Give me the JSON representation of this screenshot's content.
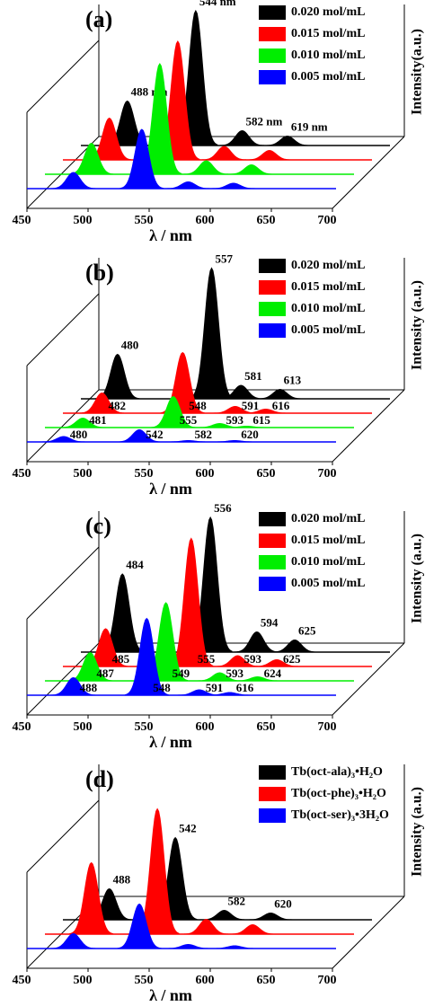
{
  "chart_data": [
    {
      "type": "waterfall",
      "title": "(a)",
      "xlabel": "λ / nm",
      "ylabel": "Intensity(a.u.)",
      "xlim": [
        450,
        700
      ],
      "xticks": [
        450,
        500,
        550,
        600,
        650,
        700
      ],
      "ylim": [
        0,
        100
      ],
      "legend": "upper right",
      "series": [
        {
          "name": "0.020 mol/mL",
          "color": "#000000",
          "x": [
            488,
            544,
            582,
            619
          ],
          "values": [
            33,
            100,
            11,
            7
          ],
          "labels": true,
          "x_labels": [
            "488 nm",
            "544 nm",
            "582 nm",
            "619 nm"
          ]
        },
        {
          "name": "0.015 mol/mL",
          "color": "#ff0000",
          "x": [
            488,
            544,
            582,
            619
          ],
          "values": [
            31,
            88,
            10,
            7
          ]
        },
        {
          "name": "0.010 mol/mL",
          "color": "#00ee00",
          "x": [
            488,
            544,
            582,
            619
          ],
          "values": [
            23,
            82,
            10,
            7
          ]
        },
        {
          "name": "0.005 mol/mL",
          "color": "#0000ff",
          "x": [
            488,
            544,
            582,
            619
          ],
          "values": [
            12,
            44,
            5,
            4
          ]
        }
      ]
    },
    {
      "type": "waterfall",
      "title": "(b)",
      "xlabel": "λ / nm",
      "ylabel": "Intensity (a.u.)",
      "xlim": [
        450,
        700
      ],
      "xticks": [
        450,
        500,
        550,
        600,
        650,
        700
      ],
      "ylim": [
        0,
        100
      ],
      "legend": "upper right",
      "series": [
        {
          "name": "0.020 mol/mL",
          "color": "#000000",
          "x": [
            480,
            557,
            581,
            613
          ],
          "values": [
            33,
            97,
            10,
            7
          ],
          "labels": true
        },
        {
          "name": "0.015 mol/mL",
          "color": "#ff0000",
          "x": [
            482,
            548,
            591,
            616
          ],
          "values": [
            15,
            45,
            5,
            3
          ],
          "labels": true
        },
        {
          "name": "0.010 mol/mL",
          "color": "#00ee00",
          "x": [
            481,
            555,
            593,
            615
          ],
          "values": [
            7,
            23,
            3,
            1
          ],
          "labels": true
        },
        {
          "name": "0.005 mol/mL",
          "color": "#0000ff",
          "x": [
            480,
            542,
            582,
            620
          ],
          "values": [
            4,
            9,
            1,
            1
          ],
          "labels": true
        }
      ]
    },
    {
      "type": "waterfall",
      "title": "(c)",
      "xlabel": "λ / nm",
      "ylabel": "Intensity (a.u.)",
      "xlim": [
        450,
        700
      ],
      "xticks": [
        450,
        500,
        550,
        600,
        650,
        700
      ],
      "ylim": [
        0,
        100
      ],
      "legend": "upper right",
      "series": [
        {
          "name": "0.020 mol/mL",
          "color": "#000000",
          "x": [
            484,
            556,
            594,
            625
          ],
          "values": [
            58,
            100,
            15,
            9
          ],
          "labels": true
        },
        {
          "name": "0.015 mol/mL",
          "color": "#ff0000",
          "x": [
            485,
            555,
            593,
            625
          ],
          "values": [
            28,
            95,
            8,
            5
          ],
          "labels": true
        },
        {
          "name": "0.010 mol/mL",
          "color": "#00ee00",
          "x": [
            487,
            549,
            593,
            624
          ],
          "values": [
            21,
            58,
            6,
            3
          ],
          "labels": true
        },
        {
          "name": "0.005 mol/mL",
          "color": "#0000ff",
          "x": [
            488,
            548,
            591,
            616
          ],
          "values": [
            13,
            57,
            4,
            2
          ],
          "labels": true
        }
      ]
    },
    {
      "type": "waterfall",
      "title": "(d)",
      "xlabel": "λ / nm",
      "ylabel": "Intensity (a.u.)",
      "xlim": [
        450,
        700
      ],
      "xticks": [
        450,
        500,
        550,
        600,
        650,
        700
      ],
      "ylim": [
        0,
        100
      ],
      "legend": "upper right",
      "series": [
        {
          "name": "Tb(oct-ala)₃•H₂O",
          "color": "#000000",
          "x": [
            488,
            542,
            582,
            620
          ],
          "values": [
            23,
            61,
            7,
            5
          ],
          "labels": true
        },
        {
          "name": "Tb(oct-phe)₃•H₂O",
          "color": "#ff0000",
          "x": [
            488,
            542,
            582,
            620
          ],
          "values": [
            53,
            93,
            11,
            7
          ]
        },
        {
          "name": "Tb(oct-ser)₃•3H₂O",
          "color": "#0000ff",
          "x": [
            488,
            542,
            582,
            620
          ],
          "values": [
            11,
            33,
            3,
            2
          ]
        }
      ]
    }
  ]
}
